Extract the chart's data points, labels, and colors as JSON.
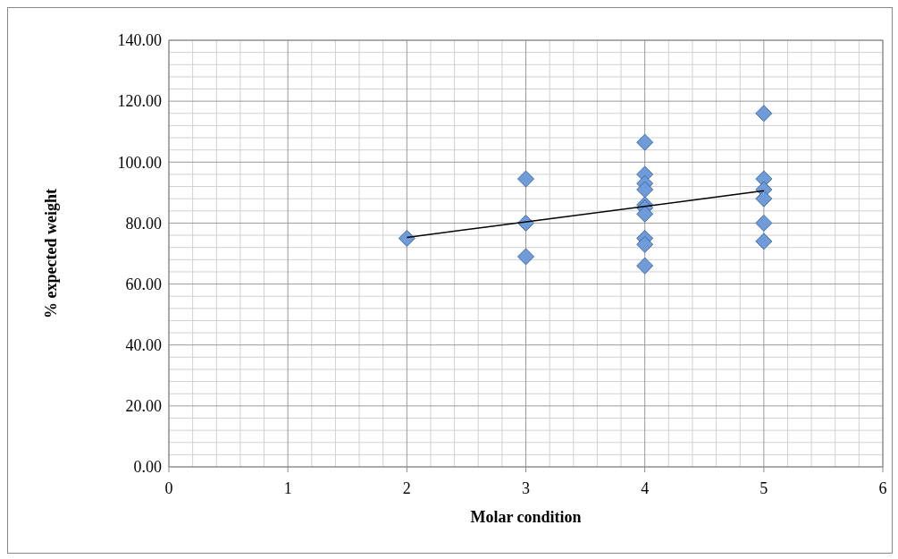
{
  "chart_data": {
    "type": "scatter",
    "xlabel": "Molar condition",
    "ylabel": "% expected weight",
    "xlim": [
      0,
      6
    ],
    "xticks": [
      0,
      1,
      2,
      3,
      4,
      5,
      6
    ],
    "ylim": [
      0,
      140
    ],
    "yticks": [
      {
        "value": 0,
        "label": "0.00"
      },
      {
        "value": 20,
        "label": "20.00"
      },
      {
        "value": 40,
        "label": "40.00"
      },
      {
        "value": 60,
        "label": "60.00"
      },
      {
        "value": 80,
        "label": "80.00"
      },
      {
        "value": 100,
        "label": "100.00"
      },
      {
        "value": 120,
        "label": "120.00"
      },
      {
        "value": 140,
        "label": "140.00"
      }
    ],
    "grid": true,
    "series": [
      {
        "color": "#6f9bd8",
        "marker": "diamond",
        "x": [
          2,
          3,
          3,
          3,
          4,
          4,
          4,
          4,
          4,
          4,
          4,
          4,
          4,
          4,
          5,
          5,
          5,
          5,
          5,
          5
        ],
        "values": [
          75,
          94.5,
          80,
          69,
          106.5,
          96,
          93,
          91,
          86,
          85,
          83,
          75,
          73,
          66,
          116,
          94.5,
          91,
          88,
          80,
          74
        ]
      },
      {
        "type": "line",
        "color": "#000000",
        "marker": "none",
        "x": [
          2,
          5
        ],
        "values": [
          75.3,
          90.6
        ]
      }
    ]
  }
}
